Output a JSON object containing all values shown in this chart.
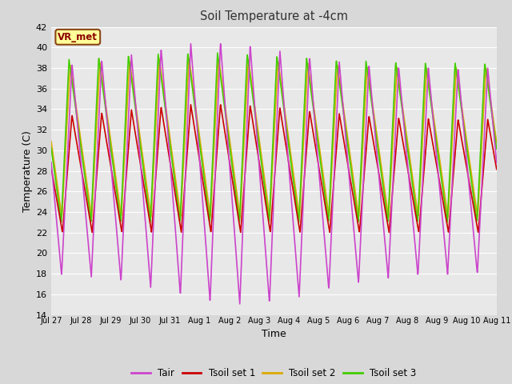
{
  "title": "Soil Temperature at -4cm",
  "xlabel": "Time",
  "ylabel": "Temperature (C)",
  "ylim": [
    14,
    42
  ],
  "yticks": [
    14,
    16,
    18,
    20,
    22,
    24,
    26,
    28,
    30,
    32,
    34,
    36,
    38,
    40,
    42
  ],
  "xtick_labels": [
    "Jul 27",
    "Jul 28",
    "Jul 29",
    "Jul 30",
    "Jul 31",
    "Aug 1",
    "Aug 2",
    "Aug 3",
    "Aug 4",
    "Aug 5",
    "Aug 6",
    "Aug 7",
    "Aug 8",
    "Aug 9",
    "Aug 10",
    "Aug 11"
  ],
  "xtick_positions": [
    1,
    2,
    3,
    4,
    5,
    6,
    7,
    8,
    9,
    10,
    11,
    12,
    13,
    14,
    15,
    16
  ],
  "fig_bg_color": "#d8d8d8",
  "plot_bg_color": "#e8e8e8",
  "grid_color": "#ffffff",
  "colors": {
    "Tair": "#cc44cc",
    "Tsoil_set1": "#cc0000",
    "Tsoil_set2": "#ddaa00",
    "Tsoil_set3": "#44cc00"
  },
  "legend_labels": [
    "Tair",
    "Tsoil set 1",
    "Tsoil set 2",
    "Tsoil set 3"
  ],
  "annotation_text": "VR_met",
  "annotation_box_color": "#ffff99",
  "annotation_border_color": "#8B4513",
  "annotation_text_color": "#8B0000",
  "n_points": 1600,
  "period": 1.0
}
